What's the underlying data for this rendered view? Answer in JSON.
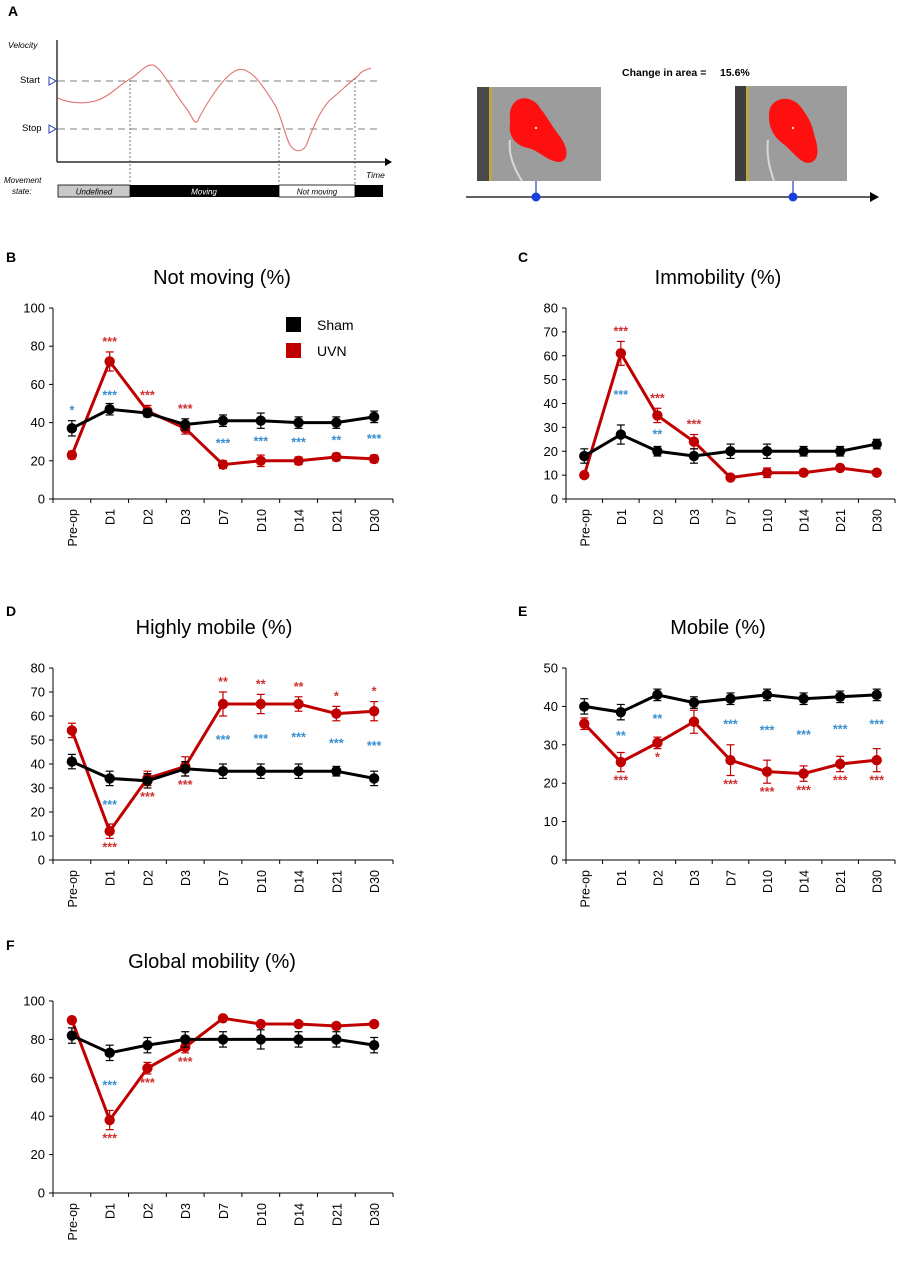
{
  "panel_a": {
    "letter": "A",
    "velocity_label": "Velocity",
    "start_label": "Start",
    "stop_label": "Stop",
    "time_label": "Time",
    "movement_state_label": [
      "Movement",
      "state:"
    ],
    "states": [
      "Undefined",
      "Moving",
      "Not moving"
    ],
    "change_in_area_label": "Change in area =",
    "change_in_area_value": "15.6%"
  },
  "legend": {
    "sham": "Sham",
    "uvn": "UVN",
    "sham_color": "#000000",
    "uvn_color": "#c00000"
  },
  "colors": {
    "sham": "#000000",
    "uvn": "#c00000",
    "sig_blue": "#3a8fd0",
    "sig_red": "#d03030"
  },
  "chart_data": [
    {
      "id": "B",
      "type": "line",
      "title": "Not moving (%)",
      "categories": [
        "Pre-op",
        "D1",
        "D2",
        "D3",
        "D7",
        "D10",
        "D14",
        "D21",
        "D30"
      ],
      "ylim": [
        0,
        100
      ],
      "yticks": [
        0,
        20,
        40,
        60,
        80,
        100
      ],
      "series": [
        {
          "name": "Sham",
          "values": [
            37,
            47,
            45,
            39,
            41,
            41,
            40,
            40,
            43
          ],
          "errors": [
            4,
            3,
            2,
            3,
            3,
            4,
            3,
            3,
            3
          ]
        },
        {
          "name": "UVN",
          "values": [
            23,
            72,
            46,
            37,
            18,
            20,
            20,
            22,
            21
          ],
          "errors": [
            2,
            5,
            3,
            3,
            2,
            3,
            2,
            2,
            2
          ]
        }
      ],
      "annotations": [
        {
          "category": "Pre-op",
          "text": "*",
          "color": "blue",
          "pos": "above"
        },
        {
          "category": "D1",
          "text": "***",
          "color": "red",
          "pos": "above"
        },
        {
          "category": "D1",
          "text": "***",
          "color": "blue",
          "pos": "above_sham"
        },
        {
          "category": "D2",
          "text": "***",
          "color": "red",
          "pos": "above"
        },
        {
          "category": "D3",
          "text": "***",
          "color": "red",
          "pos": "above"
        },
        {
          "category": "D7",
          "text": "***",
          "color": "blue",
          "pos": "between"
        },
        {
          "category": "D10",
          "text": "***",
          "color": "blue",
          "pos": "between"
        },
        {
          "category": "D14",
          "text": "***",
          "color": "blue",
          "pos": "between"
        },
        {
          "category": "D21",
          "text": "**",
          "color": "blue",
          "pos": "between"
        },
        {
          "category": "D30",
          "text": "***",
          "color": "blue",
          "pos": "between"
        }
      ]
    },
    {
      "id": "C",
      "type": "line",
      "title": "Immobility (%)",
      "categories": [
        "Pre-op",
        "D1",
        "D2",
        "D3",
        "D7",
        "D10",
        "D14",
        "D21",
        "D30"
      ],
      "ylim": [
        0,
        80
      ],
      "yticks": [
        0,
        10,
        20,
        30,
        40,
        50,
        60,
        70,
        80
      ],
      "series": [
        {
          "name": "Sham",
          "values": [
            18,
            27,
            20,
            18,
            20,
            20,
            20,
            20,
            23
          ],
          "errors": [
            3,
            4,
            2,
            3,
            3,
            3,
            2,
            2,
            2
          ]
        },
        {
          "name": "UVN",
          "values": [
            10,
            61,
            35,
            24,
            9,
            11,
            11,
            13,
            11
          ],
          "errors": [
            1,
            5,
            3,
            3,
            1,
            2,
            1,
            1,
            1
          ]
        }
      ],
      "annotations": [
        {
          "category": "D1",
          "text": "***",
          "color": "red",
          "pos": "above"
        },
        {
          "category": "D1",
          "text": "***",
          "color": "blue",
          "pos": "between"
        },
        {
          "category": "D2",
          "text": "***",
          "color": "red",
          "pos": "above"
        },
        {
          "category": "D2",
          "text": "**",
          "color": "blue",
          "pos": "between"
        },
        {
          "category": "D3",
          "text": "***",
          "color": "red",
          "pos": "above"
        }
      ]
    },
    {
      "id": "D",
      "type": "line",
      "title": "Highly mobile (%)",
      "categories": [
        "Pre-op",
        "D1",
        "D2",
        "D3",
        "D7",
        "D10",
        "D14",
        "D21",
        "D30"
      ],
      "ylim": [
        0,
        80
      ],
      "yticks": [
        0,
        10,
        20,
        30,
        40,
        50,
        60,
        70,
        80
      ],
      "series": [
        {
          "name": "Sham",
          "values": [
            41,
            34,
            33,
            38,
            37,
            37,
            37,
            37,
            34
          ],
          "errors": [
            3,
            3,
            3,
            3,
            3,
            3,
            3,
            2,
            3
          ]
        },
        {
          "name": "UVN",
          "values": [
            54,
            12,
            34,
            39,
            65,
            65,
            65,
            61,
            62
          ],
          "errors": [
            3,
            3,
            3,
            4,
            5,
            4,
            3,
            3,
            4
          ]
        }
      ],
      "annotations": [
        {
          "category": "D1",
          "text": "***",
          "color": "blue",
          "pos": "between"
        },
        {
          "category": "D1",
          "text": "***",
          "color": "red",
          "pos": "below"
        },
        {
          "category": "D2",
          "text": "***",
          "color": "red",
          "pos": "below"
        },
        {
          "category": "D3",
          "text": "***",
          "color": "red",
          "pos": "below"
        },
        {
          "category": "D7",
          "text": "**",
          "color": "red",
          "pos": "above"
        },
        {
          "category": "D7",
          "text": "***",
          "color": "blue",
          "pos": "between"
        },
        {
          "category": "D10",
          "text": "**",
          "color": "red",
          "pos": "above"
        },
        {
          "category": "D10",
          "text": "***",
          "color": "blue",
          "pos": "between"
        },
        {
          "category": "D14",
          "text": "**",
          "color": "red",
          "pos": "above"
        },
        {
          "category": "D14",
          "text": "***",
          "color": "blue",
          "pos": "between"
        },
        {
          "category": "D21",
          "text": "*",
          "color": "red",
          "pos": "above"
        },
        {
          "category": "D21",
          "text": "***",
          "color": "blue",
          "pos": "between"
        },
        {
          "category": "D30",
          "text": "*",
          "color": "red",
          "pos": "above"
        },
        {
          "category": "D30",
          "text": "***",
          "color": "blue",
          "pos": "between"
        }
      ]
    },
    {
      "id": "E",
      "type": "line",
      "title": "Mobile (%)",
      "categories": [
        "Pre-op",
        "D1",
        "D2",
        "D3",
        "D7",
        "D10",
        "D14",
        "D21",
        "D30"
      ],
      "ylim": [
        0,
        50
      ],
      "yticks": [
        0,
        10,
        20,
        30,
        40,
        50
      ],
      "series": [
        {
          "name": "Sham",
          "values": [
            40,
            38.5,
            43,
            41,
            42,
            43,
            42,
            42.5,
            43
          ],
          "errors": [
            2,
            2,
            1.5,
            1.5,
            1.5,
            1.5,
            1.5,
            1.5,
            1.5
          ]
        },
        {
          "name": "UVN",
          "values": [
            35.5,
            25.5,
            30.5,
            36,
            26,
            23,
            22.5,
            25,
            26
          ],
          "errors": [
            1.5,
            2.5,
            1.5,
            3,
            4,
            3,
            2,
            2,
            3
          ]
        }
      ],
      "annotations": [
        {
          "category": "D1",
          "text": "**",
          "color": "blue",
          "pos": "between"
        },
        {
          "category": "D1",
          "text": "***",
          "color": "red",
          "pos": "below"
        },
        {
          "category": "D2",
          "text": "**",
          "color": "blue",
          "pos": "between"
        },
        {
          "category": "D2",
          "text": "*",
          "color": "red",
          "pos": "below"
        },
        {
          "category": "D7",
          "text": "***",
          "color": "blue",
          "pos": "between"
        },
        {
          "category": "D7",
          "text": "***",
          "color": "red",
          "pos": "below"
        },
        {
          "category": "D10",
          "text": "***",
          "color": "blue",
          "pos": "between"
        },
        {
          "category": "D10",
          "text": "***",
          "color": "red",
          "pos": "below"
        },
        {
          "category": "D14",
          "text": "***",
          "color": "blue",
          "pos": "between"
        },
        {
          "category": "D14",
          "text": "***",
          "color": "red",
          "pos": "below"
        },
        {
          "category": "D21",
          "text": "***",
          "color": "blue",
          "pos": "between"
        },
        {
          "category": "D21",
          "text": "***",
          "color": "red",
          "pos": "below"
        },
        {
          "category": "D30",
          "text": "***",
          "color": "blue",
          "pos": "between"
        },
        {
          "category": "D30",
          "text": "***",
          "color": "red",
          "pos": "below"
        }
      ]
    },
    {
      "id": "F",
      "type": "line",
      "title": "Global mobility (%)",
      "categories": [
        "Pre-op",
        "D1",
        "D2",
        "D3",
        "D7",
        "D10",
        "D14",
        "D21",
        "D30"
      ],
      "ylim": [
        0,
        100
      ],
      "yticks": [
        0,
        20,
        40,
        60,
        80,
        100
      ],
      "series": [
        {
          "name": "Sham",
          "values": [
            82,
            73,
            77,
            80,
            80,
            80,
            80,
            80,
            77
          ],
          "errors": [
            4,
            4,
            4,
            4,
            4,
            5,
            4,
            4,
            4
          ]
        },
        {
          "name": "UVN",
          "values": [
            90,
            38,
            65,
            76,
            91,
            88,
            88,
            87,
            88
          ],
          "errors": [
            1,
            5,
            3,
            3,
            1,
            1,
            1,
            1,
            1
          ]
        }
      ],
      "annotations": [
        {
          "category": "D1",
          "text": "***",
          "color": "blue",
          "pos": "between"
        },
        {
          "category": "D1",
          "text": "***",
          "color": "red",
          "pos": "below"
        },
        {
          "category": "D2",
          "text": "***",
          "color": "red",
          "pos": "below"
        },
        {
          "category": "D3",
          "text": "***",
          "color": "red",
          "pos": "below"
        }
      ]
    }
  ]
}
